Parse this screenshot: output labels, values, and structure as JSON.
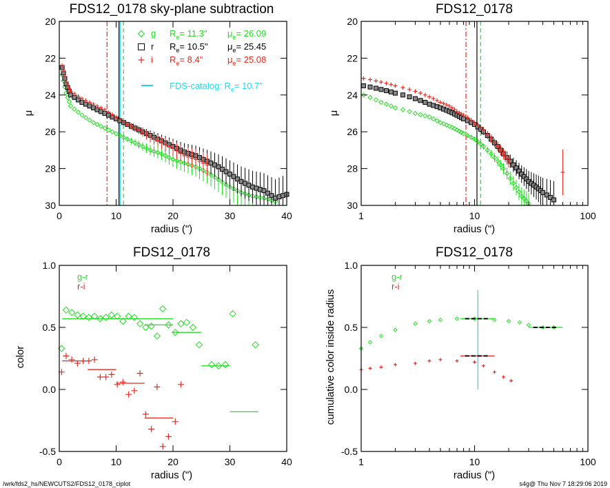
{
  "colors": {
    "g": "#22dd22",
    "r": "#000000",
    "i": "#e8281e",
    "catalog": "#22d8e8",
    "r_box_fill": "#888888"
  },
  "footer": {
    "left": "/wrk/fds2_hs/NEWCUTS2/FDS12_0178_ciplot",
    "right": "s4g@  Thu Nov  7 18:29:06 2019"
  },
  "chart_data": [
    {
      "type": "scatter",
      "title": "FDS12_0178 sky-plane subtraction",
      "xlabel": "radius (\")",
      "ylabel": "μ",
      "xlim": [
        0,
        40
      ],
      "ylim": [
        30,
        20
      ],
      "xticks": [
        "0",
        "10",
        "20",
        "30",
        "40"
      ],
      "yticks": [
        "20",
        "22",
        "24",
        "26",
        "28",
        "30"
      ],
      "legend": [
        {
          "band": "g",
          "marker": "diamond",
          "text": "R",
          "sub": "e",
          "value": "=  11.3\"",
          "mu": "μ",
          "mu_sub": "e",
          "mu_value": "= 26.09"
        },
        {
          "band": "r",
          "marker": "square",
          "text": "R",
          "sub": "e",
          "value": "=  10.5\"",
          "mu": "μ",
          "mu_sub": "e",
          "mu_value": "= 25.45"
        },
        {
          "band": "i",
          "marker": "plus",
          "text": "R",
          "sub": "e",
          "value": "=   8.4\"",
          "mu": "μ",
          "mu_sub": "e",
          "mu_value": "= 25.08"
        }
      ],
      "catalog_legend": {
        "text": "FDS-catalog: R",
        "sub": "e",
        "value": "=  10.7\""
      },
      "vlines": [
        {
          "band": "i",
          "x": 8.4,
          "style": "dashdot"
        },
        {
          "band": "r",
          "x": 10.5,
          "style": "solid"
        },
        {
          "band": "g",
          "x": 11.3,
          "style": "dashed"
        },
        {
          "band": "catalog",
          "x": 10.7,
          "style": "solid"
        }
      ],
      "series": [
        {
          "band": "g",
          "points": [
            [
              0.5,
              22.9
            ],
            [
              1.2,
              23.9
            ],
            [
              2,
              24.6
            ],
            [
              4,
              25.1
            ],
            [
              6,
              25.5
            ],
            [
              8,
              25.8
            ],
            [
              10,
              26.1
            ],
            [
              12,
              26.4
            ],
            [
              14,
              26.7
            ],
            [
              16,
              27.0
            ],
            [
              18,
              27.2
            ],
            [
              20,
              27.5
            ],
            [
              22,
              27.7
            ],
            [
              24,
              27.9
            ],
            [
              26,
              28.2
            ],
            [
              28,
              28.6
            ],
            [
              30,
              29.0
            ],
            [
              32,
              29.3
            ],
            [
              34,
              29.5
            ],
            [
              36,
              29.6
            ],
            [
              38,
              29.8
            ]
          ]
        },
        {
          "band": "r",
          "points": [
            [
              0.5,
              22.5
            ],
            [
              1.2,
              23.4
            ],
            [
              2,
              24.0
            ],
            [
              4,
              24.4
            ],
            [
              6,
              24.7
            ],
            [
              8,
              25.0
            ],
            [
              10,
              25.3
            ],
            [
              12,
              25.6
            ],
            [
              14,
              25.9
            ],
            [
              16,
              26.2
            ],
            [
              18,
              26.5
            ],
            [
              20,
              26.8
            ],
            [
              22,
              27.1
            ],
            [
              24,
              27.3
            ],
            [
              26,
              27.6
            ],
            [
              28,
              27.9
            ],
            [
              30,
              28.3
            ],
            [
              32,
              28.7
            ],
            [
              34,
              29.0
            ],
            [
              36,
              29.2
            ],
            [
              38,
              29.6
            ],
            [
              40,
              29.4
            ]
          ]
        },
        {
          "band": "i",
          "points": [
            [
              0.5,
              22.4
            ],
            [
              1.2,
              23.3
            ],
            [
              2,
              23.8
            ],
            [
              4,
              24.2
            ],
            [
              6,
              24.5
            ],
            [
              8,
              24.8
            ],
            [
              10,
              25.2
            ],
            [
              12,
              25.6
            ],
            [
              14,
              25.9
            ],
            [
              16,
              26.3
            ],
            [
              18,
              26.6
            ],
            [
              20,
              26.9
            ],
            [
              22,
              27.3
            ],
            [
              24,
              27.5
            ],
            [
              26,
              27.8
            ]
          ]
        }
      ]
    },
    {
      "type": "scatter",
      "title": "FDS12_0178",
      "xlabel": "radius (\")",
      "ylabel": "μ",
      "xscale": "log",
      "xlim": [
        1,
        100
      ],
      "ylim": [
        30,
        20
      ],
      "xticks": [
        "1",
        "10",
        "100"
      ],
      "yticks": [
        "20",
        "22",
        "24",
        "26",
        "28",
        "30"
      ],
      "vlines": [
        {
          "band": "i",
          "x": 8.4,
          "style": "dashdot"
        },
        {
          "band": "r",
          "x": 10.5,
          "style": "solid"
        },
        {
          "band": "g",
          "x": 11.3,
          "style": "dashed"
        }
      ],
      "series": [
        {
          "band": "g",
          "points": [
            [
              1.05,
              24.0
            ],
            [
              1.5,
              24.4
            ],
            [
              2,
              24.7
            ],
            [
              3,
              25.0
            ],
            [
              4,
              25.2
            ],
            [
              5,
              25.5
            ],
            [
              6,
              25.7
            ],
            [
              7,
              25.9
            ],
            [
              8,
              26.1
            ],
            [
              10,
              26.4
            ],
            [
              12,
              26.8
            ],
            [
              15,
              27.4
            ],
            [
              18,
              28.0
            ],
            [
              22,
              28.8
            ],
            [
              26,
              29.5
            ],
            [
              30,
              29.9
            ]
          ]
        },
        {
          "band": "r",
          "points": [
            [
              1.05,
              23.5
            ],
            [
              1.5,
              23.7
            ],
            [
              2,
              23.9
            ],
            [
              3,
              24.2
            ],
            [
              4,
              24.5
            ],
            [
              5,
              24.7
            ],
            [
              6,
              24.9
            ],
            [
              7,
              25.1
            ],
            [
              8,
              25.3
            ],
            [
              10,
              25.6
            ],
            [
              12,
              26.0
            ],
            [
              15,
              26.6
            ],
            [
              18,
              27.2
            ],
            [
              22,
              27.8
            ],
            [
              26,
              28.3
            ],
            [
              30,
              28.7
            ],
            [
              35,
              29.0
            ],
            [
              40,
              29.3
            ],
            [
              50,
              29.7
            ]
          ]
        },
        {
          "band": "i",
          "points": [
            [
              1.05,
              23.1
            ],
            [
              1.5,
              23.3
            ],
            [
              2,
              23.5
            ],
            [
              3,
              23.8
            ],
            [
              4,
              24.1
            ],
            [
              5,
              24.4
            ],
            [
              6,
              24.6
            ],
            [
              7,
              24.9
            ],
            [
              8,
              25.1
            ],
            [
              10,
              25.5
            ],
            [
              12,
              25.9
            ],
            [
              15,
              26.6
            ],
            [
              18,
              27.2
            ],
            [
              20,
              27.6
            ],
            [
              60,
              28.2
            ]
          ]
        }
      ]
    },
    {
      "type": "scatter",
      "title": "FDS12_0178",
      "xlabel": "radius (\")",
      "ylabel": "color",
      "xlim": [
        0,
        40
      ],
      "ylim": [
        -0.5,
        1.0
      ],
      "xticks": [
        "0",
        "10",
        "20",
        "30",
        "40"
      ],
      "yticks": [
        "-0.5",
        "0.0",
        "0.5",
        "1.0"
      ],
      "legend": [
        {
          "name": "g-r",
          "band": "g"
        },
        {
          "name": "r-i",
          "band": "i"
        }
      ],
      "series": [
        {
          "band": "g",
          "marker": "diamond",
          "points": [
            [
              0.4,
              0.33
            ],
            [
              1.2,
              0.64
            ],
            [
              2.2,
              0.62
            ],
            [
              3.2,
              0.6
            ],
            [
              4.2,
              0.59
            ],
            [
              5.2,
              0.58
            ],
            [
              6.2,
              0.59
            ],
            [
              7.2,
              0.57
            ],
            [
              8.2,
              0.58
            ],
            [
              9.2,
              0.6
            ],
            [
              10.2,
              0.59
            ],
            [
              11.2,
              0.55
            ],
            [
              12.2,
              0.59
            ],
            [
              13.2,
              0.58
            ],
            [
              14.2,
              0.53
            ],
            [
              15.2,
              0.5
            ],
            [
              16.2,
              0.51
            ],
            [
              17.2,
              0.43
            ],
            [
              18.2,
              0.65
            ],
            [
              19.2,
              0.52
            ],
            [
              20.4,
              0.46
            ],
            [
              21.4,
              0.53
            ],
            [
              22.4,
              0.54
            ],
            [
              23.5,
              0.5
            ],
            [
              24.6,
              0.36
            ],
            [
              26.8,
              0.2
            ],
            [
              28.0,
              0.19
            ],
            [
              29.2,
              0.2
            ],
            [
              30.5,
              0.61
            ],
            [
              34.5,
              0.36
            ]
          ]
        },
        {
          "band": "i",
          "marker": "plus",
          "points": [
            [
              0.4,
              0.14
            ],
            [
              1.2,
              0.27
            ],
            [
              2.2,
              0.24
            ],
            [
              3.2,
              0.21
            ],
            [
              4.2,
              0.23
            ],
            [
              5.2,
              0.23
            ],
            [
              6.2,
              0.24
            ],
            [
              7.2,
              0.1
            ],
            [
              8.2,
              0.1
            ],
            [
              9.2,
              0.12
            ],
            [
              10.2,
              0.04
            ],
            [
              11.2,
              0.06
            ],
            [
              12.2,
              -0.04
            ],
            [
              13.2,
              -0.01
            ],
            [
              14.2,
              0.13
            ],
            [
              15.2,
              -0.2
            ],
            [
              16.2,
              -0.32
            ],
            [
              17.2,
              0.02
            ],
            [
              18.2,
              -0.46
            ],
            [
              19.2,
              -0.38
            ],
            [
              20.4,
              -0.26
            ],
            [
              21.4,
              0.04
            ]
          ]
        }
      ],
      "segments": [
        {
          "band": "g",
          "x": [
            0.5,
            10
          ],
          "y": 0.57
        },
        {
          "band": "g",
          "x": [
            10,
            20
          ],
          "y": 0.57
        },
        {
          "band": "g",
          "x": [
            20,
            25
          ],
          "y": 0.46
        },
        {
          "band": "g",
          "x": [
            15,
            20
          ],
          "y": 0.52
        },
        {
          "band": "g",
          "x": [
            25,
            30
          ],
          "y": 0.19
        },
        {
          "band": "g",
          "x": [
            30,
            35
          ],
          "y": -0.18
        },
        {
          "band": "i",
          "x": [
            0.5,
            5
          ],
          "y": 0.23
        },
        {
          "band": "i",
          "x": [
            5,
            10
          ],
          "y": 0.16
        },
        {
          "band": "i",
          "x": [
            10,
            15
          ],
          "y": 0.05
        },
        {
          "band": "i",
          "x": [
            15,
            20
          ],
          "y": -0.23
        }
      ]
    },
    {
      "type": "scatter",
      "title": "FDS12_0178",
      "xlabel": "radius (\")",
      "ylabel": "cumulative color inside radius",
      "xscale": "log",
      "xlim": [
        1,
        100
      ],
      "ylim": [
        -0.5,
        1.0
      ],
      "xticks": [
        "1",
        "10",
        "100"
      ],
      "yticks": [
        "-0.5",
        "0.0",
        "0.5",
        "1.0"
      ],
      "legend": [
        {
          "name": "g-r",
          "band": "g"
        },
        {
          "name": "r-i",
          "band": "i"
        }
      ],
      "catalog_line": {
        "x": 10.7,
        "y": [
          0.0,
          0.8
        ]
      },
      "series": [
        {
          "band": "g",
          "marker": "diamond",
          "points": [
            [
              1.0,
              0.33
            ],
            [
              1.2,
              0.38
            ],
            [
              1.5,
              0.43
            ],
            [
              2,
              0.48
            ],
            [
              3,
              0.53
            ],
            [
              4,
              0.55
            ],
            [
              5,
              0.56
            ],
            [
              7,
              0.57
            ],
            [
              10,
              0.57
            ],
            [
              15,
              0.56
            ],
            [
              20,
              0.55
            ],
            [
              25,
              0.54
            ],
            [
              30,
              0.52
            ],
            [
              40,
              0.5
            ],
            [
              50,
              0.5
            ]
          ]
        },
        {
          "band": "i",
          "marker": "plus",
          "points": [
            [
              1.0,
              0.16
            ],
            [
              1.2,
              0.17
            ],
            [
              1.5,
              0.18
            ],
            [
              2,
              0.2
            ],
            [
              3,
              0.21
            ],
            [
              4,
              0.23
            ],
            [
              5,
              0.24
            ],
            [
              7,
              0.23
            ],
            [
              10,
              0.22
            ],
            [
              12,
              0.19
            ],
            [
              15,
              0.14
            ],
            [
              18,
              0.1
            ],
            [
              21,
              0.07
            ]
          ]
        }
      ],
      "segments": [
        {
          "band": "g",
          "x": [
            7.5,
            15
          ],
          "y": 0.57
        },
        {
          "band": "g",
          "x": [
            30,
            60
          ],
          "y": 0.5
        },
        {
          "band": "i",
          "x": [
            7.5,
            15
          ],
          "y": 0.27
        }
      ]
    }
  ]
}
